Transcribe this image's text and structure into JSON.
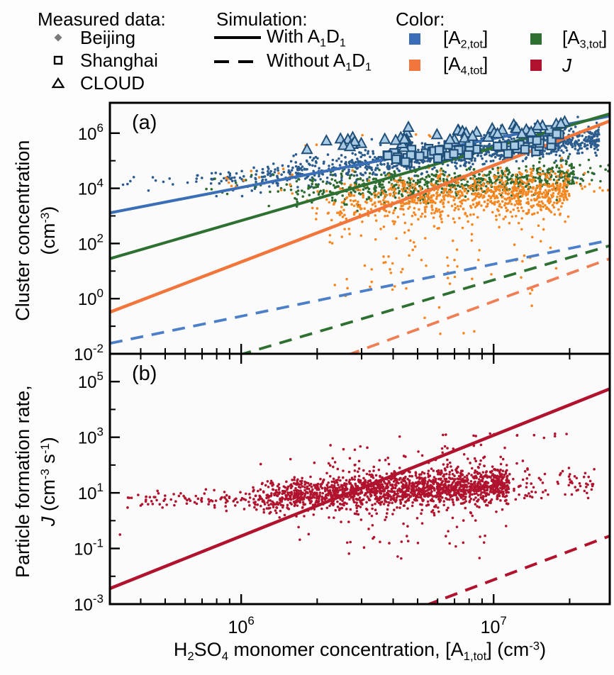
{
  "colors": {
    "blue": "#3A6FB7",
    "blue_dash": "#4C7FC9",
    "blue_dot": "#2B5C8D",
    "blue_fill": "#A9CBE3",
    "blue_edge": "#1F4E79",
    "green": "#2E7031",
    "green_dash": "#2E7031",
    "green_dot": "#2D6A2E",
    "orange": "#F2763B",
    "orange_dash": "#EF7E55",
    "orange_dot": "#F6861F",
    "red": "#B1122D",
    "gray_symbol": "#7A7A7A",
    "frame": "#000000",
    "panel_bg": "#FBFBFB"
  },
  "legend": {
    "measured": {
      "header": "Measured data:",
      "items": [
        {
          "symbol": "diamond-filled",
          "label": "Beijing"
        },
        {
          "symbol": "square-open",
          "label": "Shanghai"
        },
        {
          "symbol": "triangle-open",
          "label": "CLOUD"
        }
      ]
    },
    "simulation": {
      "header": "Simulation:",
      "items": [
        {
          "line": "solid",
          "label_parts": [
            {
              "t": "With A"
            },
            {
              "t": "1",
              "s": "sb"
            },
            {
              "t": "D"
            },
            {
              "t": "1",
              "s": "sb"
            }
          ]
        },
        {
          "line": "dashed",
          "label_parts": [
            {
              "t": "Without A"
            },
            {
              "t": "1",
              "s": "sb"
            },
            {
              "t": "D"
            },
            {
              "t": "1",
              "s": "sb"
            }
          ]
        }
      ]
    },
    "color": {
      "header": "Color:",
      "items": [
        {
          "color": "blue",
          "label_parts": [
            {
              "t": "[A"
            },
            {
              "t": "2,tot",
              "s": "sb"
            },
            {
              "t": "]"
            }
          ]
        },
        {
          "color": "green",
          "label_parts": [
            {
              "t": "[A"
            },
            {
              "t": "3,tot",
              "s": "sb"
            },
            {
              "t": "]"
            }
          ]
        },
        {
          "color": "orange",
          "label_parts": [
            {
              "t": "[A"
            },
            {
              "t": "4,tot",
              "s": "sb"
            },
            {
              "t": "]"
            }
          ]
        },
        {
          "color": "red",
          "label_parts": [
            {
              "t": "J",
              "s": "it"
            }
          ]
        }
      ]
    }
  },
  "axes": {
    "x_title_parts": [
      {
        "t": "H"
      },
      {
        "t": "2",
        "s": "sb"
      },
      {
        "t": "SO"
      },
      {
        "t": "4",
        "s": "sb"
      },
      {
        "t": " monomer concentration, [A"
      },
      {
        "t": "1,tot",
        "s": "sb"
      },
      {
        "t": "] (cm"
      },
      {
        "t": "-3",
        "s": "sp"
      },
      {
        "t": ")"
      }
    ],
    "y_title_a_line1": "Cluster concentration",
    "y_title_a_line2_parts": [
      {
        "t": "(cm"
      },
      {
        "t": "-3",
        "s": "sp"
      },
      {
        "t": ")"
      }
    ],
    "y_title_b_line1": "Particle formation rate,",
    "y_title_b_line2_parts": [
      {
        "t": "J",
        "s": "it"
      },
      {
        "t": " (cm"
      },
      {
        "t": "-3",
        "s": "sp"
      },
      {
        "t": " s"
      },
      {
        "t": "-1",
        "s": "sp"
      },
      {
        "t": ")"
      }
    ]
  },
  "chart_data": [
    {
      "id": "a",
      "type": "scatter",
      "panel_label": "(a)",
      "x_range_log": [
        5.48,
        7.46
      ],
      "y_range_log": [
        -2.0,
        7.1
      ],
      "x_axis": {
        "major_logs": [
          6,
          7
        ],
        "minor": {
          "decades": [
            5,
            6,
            7
          ],
          "mantissas": [
            2,
            3,
            4,
            5,
            6,
            7,
            8,
            9
          ]
        },
        "labels": [
          {
            "exp": "6",
            "log": 6
          },
          {
            "exp": "7",
            "log": 7
          }
        ],
        "show_labels": false
      },
      "y_axis": {
        "major": [
          {
            "exp": "6",
            "log": 6
          },
          {
            "exp": "4",
            "log": 4
          },
          {
            "exp": "2",
            "log": 2
          },
          {
            "exp": "0",
            "log": 0
          },
          {
            "exp": "-2",
            "log": -2
          }
        ],
        "minor_logs": [
          7,
          5,
          3,
          1,
          -1
        ]
      },
      "lines": [
        {
          "name": "A2-with-A1D1",
          "style": "solid",
          "color": "blue",
          "w": 4,
          "x": [
            5.48,
            7.46
          ],
          "y": [
            3.11,
            6.62
          ]
        },
        {
          "name": "A3-with-A1D1",
          "style": "solid",
          "color": "green",
          "w": 4,
          "x": [
            5.48,
            7.46
          ],
          "y": [
            1.45,
            6.7
          ]
        },
        {
          "name": "A4-with-A1D1",
          "style": "solid",
          "color": "orange",
          "w": 4.5,
          "x": [
            5.48,
            7.46
          ],
          "y": [
            -0.49,
            6.44
          ]
        },
        {
          "name": "A2-without-A1D1",
          "style": "dashed",
          "color": "blue_dash",
          "w": 3.8,
          "x": [
            5.48,
            7.46
          ],
          "y": [
            -1.62,
            2.12
          ]
        },
        {
          "name": "A3-without-A1D1",
          "style": "dashed",
          "color": "green_dash",
          "w": 3.8,
          "x": [
            5.99,
            7.46
          ],
          "y": [
            -2.05,
            1.92
          ]
        },
        {
          "name": "A4-without-A1D1",
          "style": "dashed",
          "color": "orange_dash",
          "w": 3.8,
          "x": [
            6.42,
            7.46
          ],
          "y": [
            -2.05,
            1.45
          ]
        }
      ],
      "clouds": [
        {
          "name": "A2-beijing-main",
          "marker": "dot",
          "r": 1.8,
          "color": "blue_dot",
          "count": 1100,
          "seed": 101,
          "x": [
            5.85,
            7.42
          ],
          "xpow": 0.6,
          "band": {
            "x0": 6.0,
            "y0": 4.35,
            "slope": 1.05
          },
          "sigma": 0.26
        },
        {
          "name": "A2-beijing-left",
          "marker": "dot",
          "r": 1.8,
          "color": "blue_dot",
          "count": 28,
          "seed": 102,
          "x": [
            5.5,
            5.97
          ],
          "xpow": 1,
          "band": {
            "x0": 5.7,
            "y0": 4.3,
            "slope": 0.35
          },
          "sigma": 0.15
        },
        {
          "name": "A2-right-sparse",
          "marker": "dot",
          "r": 1.8,
          "color": "blue_dot",
          "count": 10,
          "seed": 103,
          "x": [
            7.25,
            7.45
          ],
          "xpow": 1,
          "uniform_y": [
            4.3,
            5.8
          ]
        },
        {
          "name": "A3-beijing-main",
          "marker": "dot",
          "r": 1.8,
          "color": "green_dot",
          "count": 680,
          "seed": 104,
          "x": [
            6.15,
            7.32
          ],
          "xpow": 0.65,
          "band": {
            "x0": 6.6,
            "y0": 4.05,
            "slope": 0.5
          },
          "sigma": 0.28
        },
        {
          "name": "A3-left-sparse",
          "marker": "dot",
          "r": 1.8,
          "color": "green_dot",
          "count": 16,
          "seed": 105,
          "x": [
            5.85,
            6.2
          ],
          "xpow": 1,
          "band": {
            "x0": 6.0,
            "y0": 3.95,
            "slope": 0.3
          },
          "sigma": 0.3
        },
        {
          "name": "A3-right-sparse",
          "marker": "dot",
          "r": 1.8,
          "color": "green_dot",
          "count": 22,
          "seed": 106,
          "x": [
            7.28,
            7.46
          ],
          "xpow": 1,
          "band": {
            "x0": 7.35,
            "y0": 4.6,
            "slope": 0.5
          },
          "sigma": 0.25
        },
        {
          "name": "A4-beijing-main",
          "marker": "dot",
          "r": 1.8,
          "color": "orange_dot",
          "count": 820,
          "seed": 107,
          "x": [
            6.25,
            7.3
          ],
          "xpow": 0.6,
          "band": {
            "x0": 6.6,
            "y0": 3.6,
            "slope": 0.45
          },
          "sigma": 0.4
        },
        {
          "name": "A4-down-tail",
          "marker": "dot",
          "r": 1.8,
          "color": "orange_dot",
          "count": 90,
          "seed": 108,
          "x": [
            6.35,
            7.25
          ],
          "xpow": 1,
          "uniform_y": [
            0.1,
            3.1
          ]
        },
        {
          "name": "A4-deep-outliers",
          "marker": "dot",
          "r": 1.8,
          "color": "orange_dot",
          "count": 6,
          "seed": 109,
          "x": [
            6.5,
            7.2
          ],
          "xpow": 1,
          "uniform_y": [
            -1.4,
            0.0
          ]
        },
        {
          "name": "A4-left-sparse",
          "marker": "dot",
          "r": 1.8,
          "color": "orange_dot",
          "count": 16,
          "seed": 110,
          "x": [
            5.9,
            6.3
          ],
          "xpow": 1,
          "band": {
            "x0": 6.1,
            "y0": 4.15,
            "slope": 0.3
          },
          "sigma": 0.3
        },
        {
          "name": "A4-high-outliers",
          "marker": "dot",
          "r": 1.8,
          "color": "orange_dot",
          "count": 10,
          "seed": 111,
          "x": [
            6.2,
            6.75
          ],
          "xpow": 1,
          "uniform_y": [
            5.0,
            6.15
          ]
        },
        {
          "name": "A4-right-sparse",
          "marker": "dot",
          "r": 1.8,
          "color": "orange_dot",
          "count": 10,
          "seed": 112,
          "x": [
            7.3,
            7.46
          ],
          "xpow": 1,
          "band": {
            "x0": 7.38,
            "y0": 4.1,
            "slope": 0.0
          },
          "sigma": 0.25
        },
        {
          "name": "shanghai-squares",
          "marker": "square",
          "size": 11,
          "color": "blue_fill",
          "edge": "blue_edge",
          "count": 58,
          "seed": 113,
          "x": [
            6.55,
            7.27
          ],
          "xpow": 1,
          "band": {
            "x0": 6.55,
            "y0": 5.05,
            "slope": 0.9
          },
          "sigma": 0.16
        },
        {
          "name": "cloud-triangles",
          "marker": "triangle",
          "size": 14,
          "color": "blue_fill",
          "edge": "blue_edge",
          "count": 48,
          "seed": 114,
          "x": [
            6.25,
            7.3
          ],
          "xpow": 0.85,
          "band": {
            "x0": 6.25,
            "y0": 5.55,
            "slope": 0.67
          },
          "sigma": 0.13
        }
      ]
    },
    {
      "id": "b",
      "type": "scatter",
      "panel_label": "(b)",
      "x_range_log": [
        5.48,
        7.46
      ],
      "y_range_log": [
        -3.0,
        6.0
      ],
      "x_axis": {
        "major_logs": [
          6,
          7
        ],
        "minor": {
          "decades": [
            5,
            6,
            7
          ],
          "mantissas": [
            2,
            3,
            4,
            5,
            6,
            7,
            8,
            9
          ]
        },
        "labels": [
          {
            "exp": "6",
            "log": 6
          },
          {
            "exp": "7",
            "log": 7
          }
        ],
        "show_labels": true
      },
      "y_axis": {
        "major": [
          {
            "exp": "5",
            "log": 5
          },
          {
            "exp": "3",
            "log": 3
          },
          {
            "exp": "1",
            "log": 1
          },
          {
            "exp": "-1",
            "log": -1
          },
          {
            "exp": "-3",
            "log": -3
          }
        ],
        "minor_logs": [
          4,
          2,
          0,
          -2
        ]
      },
      "lines": [
        {
          "name": "J-with-A1D1",
          "style": "solid",
          "color": "red",
          "w": 4.5,
          "x": [
            5.48,
            7.46
          ],
          "y": [
            -2.44,
            4.74
          ]
        },
        {
          "name": "J-without-A1D1",
          "style": "dashed",
          "color": "red",
          "w": 4,
          "x": [
            6.73,
            7.46
          ],
          "y": [
            -3.05,
            -0.55
          ]
        }
      ],
      "clouds": [
        {
          "name": "J-main",
          "marker": "dot",
          "r": 1.8,
          "color": "red",
          "count": 1700,
          "seed": 201,
          "x": [
            6.05,
            7.06
          ],
          "xpow": 0.75,
          "band": {
            "x0": 6.5,
            "y0": 1.05,
            "slope": 0.5
          },
          "sigma": 0.33
        },
        {
          "name": "J-left-band",
          "marker": "dot",
          "r": 1.8,
          "color": "red",
          "count": 120,
          "seed": 202,
          "x": [
            5.53,
            6.25
          ],
          "xpow": 1,
          "band": {
            "x0": 6.0,
            "y0": 0.78,
            "slope": 0.1
          },
          "sigma": 0.17
        },
        {
          "name": "J-right-sparse",
          "marker": "dot",
          "r": 1.8,
          "color": "red",
          "count": 90,
          "seed": 203,
          "x": [
            7.0,
            7.4
          ],
          "xpow": 1,
          "band": {
            "x0": 7.0,
            "y0": 1.15,
            "slope": 0.3
          },
          "sigma": 0.3
        },
        {
          "name": "J-high-row",
          "marker": "dot",
          "r": 1.8,
          "color": "red",
          "count": 14,
          "seed": 204,
          "x": [
            6.62,
            7.42
          ],
          "xpow": 1,
          "band": {
            "x0": 7.0,
            "y0": 3.08,
            "slope": 0.0
          },
          "sigma": 0.05
        },
        {
          "name": "J-upper-outliers",
          "marker": "dot",
          "r": 1.8,
          "color": "red",
          "count": 45,
          "seed": 205,
          "x": [
            6.25,
            7.05
          ],
          "xpow": 1,
          "uniform_y": [
            1.8,
            2.75
          ]
        },
        {
          "name": "J-lower-tail",
          "marker": "dot",
          "r": 1.8,
          "color": "red",
          "count": 40,
          "seed": 206,
          "x": [
            6.2,
            7.05
          ],
          "xpow": 1,
          "uniform_y": [
            -0.85,
            0.3
          ]
        },
        {
          "name": "J-deep-outliers",
          "marker": "dot",
          "r": 1.8,
          "color": "red",
          "count": 8,
          "seed": 207,
          "x": [
            6.35,
            6.95
          ],
          "xpow": 1,
          "uniform_y": [
            -1.6,
            -0.7
          ]
        },
        {
          "name": "J-singles",
          "marker": "dot",
          "r": 1.8,
          "color": "red",
          "points": [
            [
              5.52,
              -0.5
            ],
            [
              6.62,
              -1.29
            ]
          ]
        }
      ]
    }
  ]
}
